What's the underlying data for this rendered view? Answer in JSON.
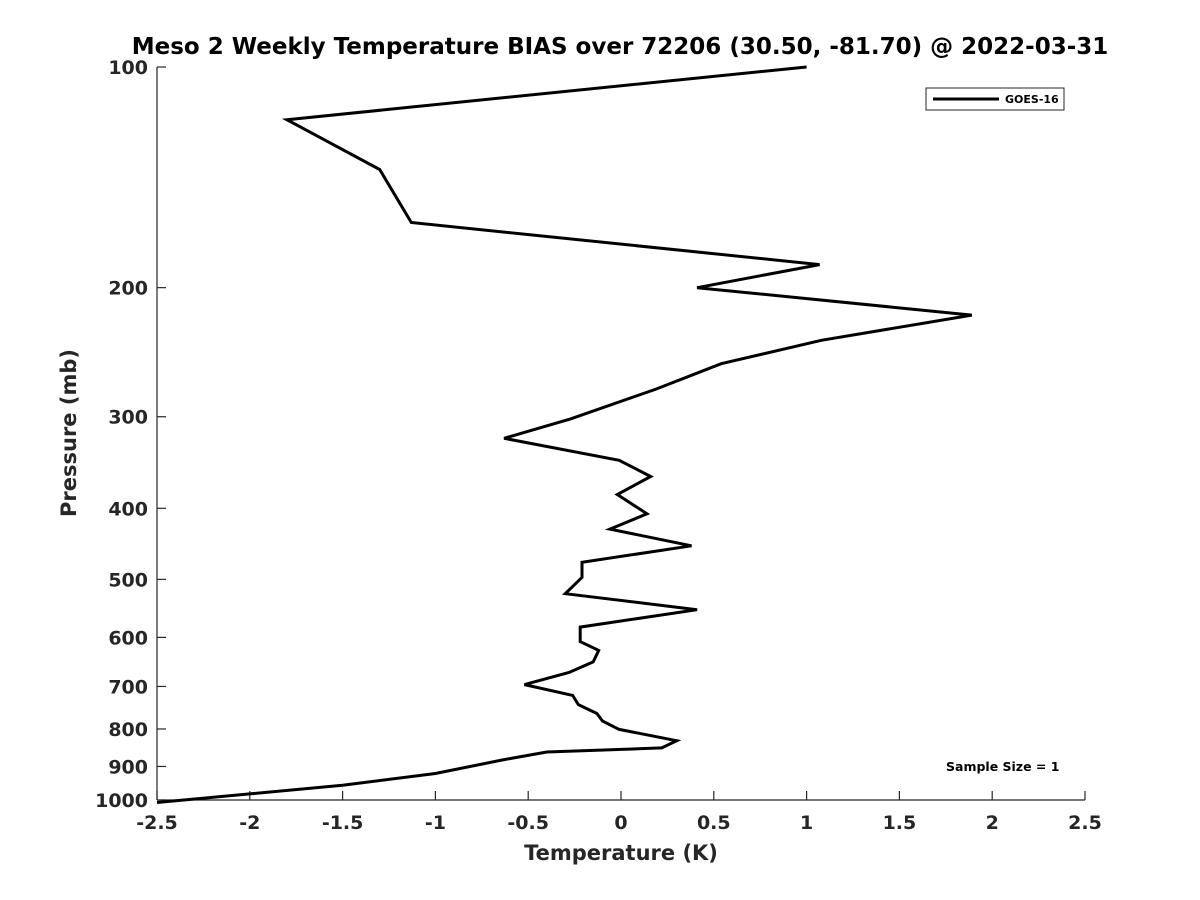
{
  "chart_data": {
    "type": "line",
    "title": "Meso 2 Weekly Temperature BIAS over 72206 (30.50, -81.70) @ 2022-03-31",
    "xlabel": "Temperature (K)",
    "ylabel": "Pressure (mb)",
    "xlim": [
      -2.5,
      2.5
    ],
    "ylim": [
      100,
      1000
    ],
    "y_scale": "log",
    "y_reversed": true,
    "grid": false,
    "legend": {
      "placement": "top-right",
      "entries": [
        "GOES-16"
      ]
    },
    "annotations": {
      "sample_size": "Sample Size = 1"
    },
    "x_ticks": [
      -2.5,
      -2,
      -1.5,
      -1,
      -0.5,
      0,
      0.5,
      1,
      1.5,
      2,
      2.5
    ],
    "x_tick_labels": [
      "-2.5",
      "-2",
      "-1.5",
      "-1",
      "-0.5",
      "0",
      "0.5",
      "1",
      "1.5",
      "2",
      "2.5"
    ],
    "y_ticks": [
      100,
      200,
      300,
      400,
      500,
      600,
      700,
      800,
      900,
      1000
    ],
    "y_tick_labels": [
      "100",
      "200",
      "300",
      "400",
      "500",
      "600",
      "700",
      "800",
      "900",
      "1000"
    ],
    "series": [
      {
        "name": "GOES-16",
        "color": "#000000",
        "points": [
          {
            "x": 1.0,
            "p": 100
          },
          {
            "x": -1.8,
            "p": 118
          },
          {
            "x": -1.3,
            "p": 138
          },
          {
            "x": -1.13,
            "p": 163
          },
          {
            "x": 1.07,
            "p": 186
          },
          {
            "x": 0.41,
            "p": 200
          },
          {
            "x": 1.89,
            "p": 218
          },
          {
            "x": 1.08,
            "p": 236
          },
          {
            "x": 0.54,
            "p": 254
          },
          {
            "x": 0.19,
            "p": 275
          },
          {
            "x": -0.27,
            "p": 302
          },
          {
            "x": -0.63,
            "p": 321
          },
          {
            "x": -0.01,
            "p": 344
          },
          {
            "x": 0.16,
            "p": 362
          },
          {
            "x": -0.02,
            "p": 383
          },
          {
            "x": 0.14,
            "p": 407
          },
          {
            "x": -0.06,
            "p": 427
          },
          {
            "x": 0.38,
            "p": 450
          },
          {
            "x": -0.21,
            "p": 474
          },
          {
            "x": -0.21,
            "p": 497
          },
          {
            "x": -0.3,
            "p": 523
          },
          {
            "x": 0.41,
            "p": 550
          },
          {
            "x": -0.22,
            "p": 581
          },
          {
            "x": -0.22,
            "p": 608
          },
          {
            "x": -0.12,
            "p": 625
          },
          {
            "x": -0.15,
            "p": 648
          },
          {
            "x": -0.28,
            "p": 670
          },
          {
            "x": -0.52,
            "p": 696
          },
          {
            "x": -0.26,
            "p": 720
          },
          {
            "x": -0.23,
            "p": 741
          },
          {
            "x": -0.13,
            "p": 762
          },
          {
            "x": -0.1,
            "p": 780
          },
          {
            "x": -0.01,
            "p": 801
          },
          {
            "x": 0.3,
            "p": 830
          },
          {
            "x": 0.22,
            "p": 849
          },
          {
            "x": -0.4,
            "p": 860
          },
          {
            "x": -0.64,
            "p": 882
          },
          {
            "x": -1.0,
            "p": 920
          },
          {
            "x": -1.5,
            "p": 955
          },
          {
            "x": -2.5,
            "p": 1008
          }
        ]
      }
    ]
  }
}
